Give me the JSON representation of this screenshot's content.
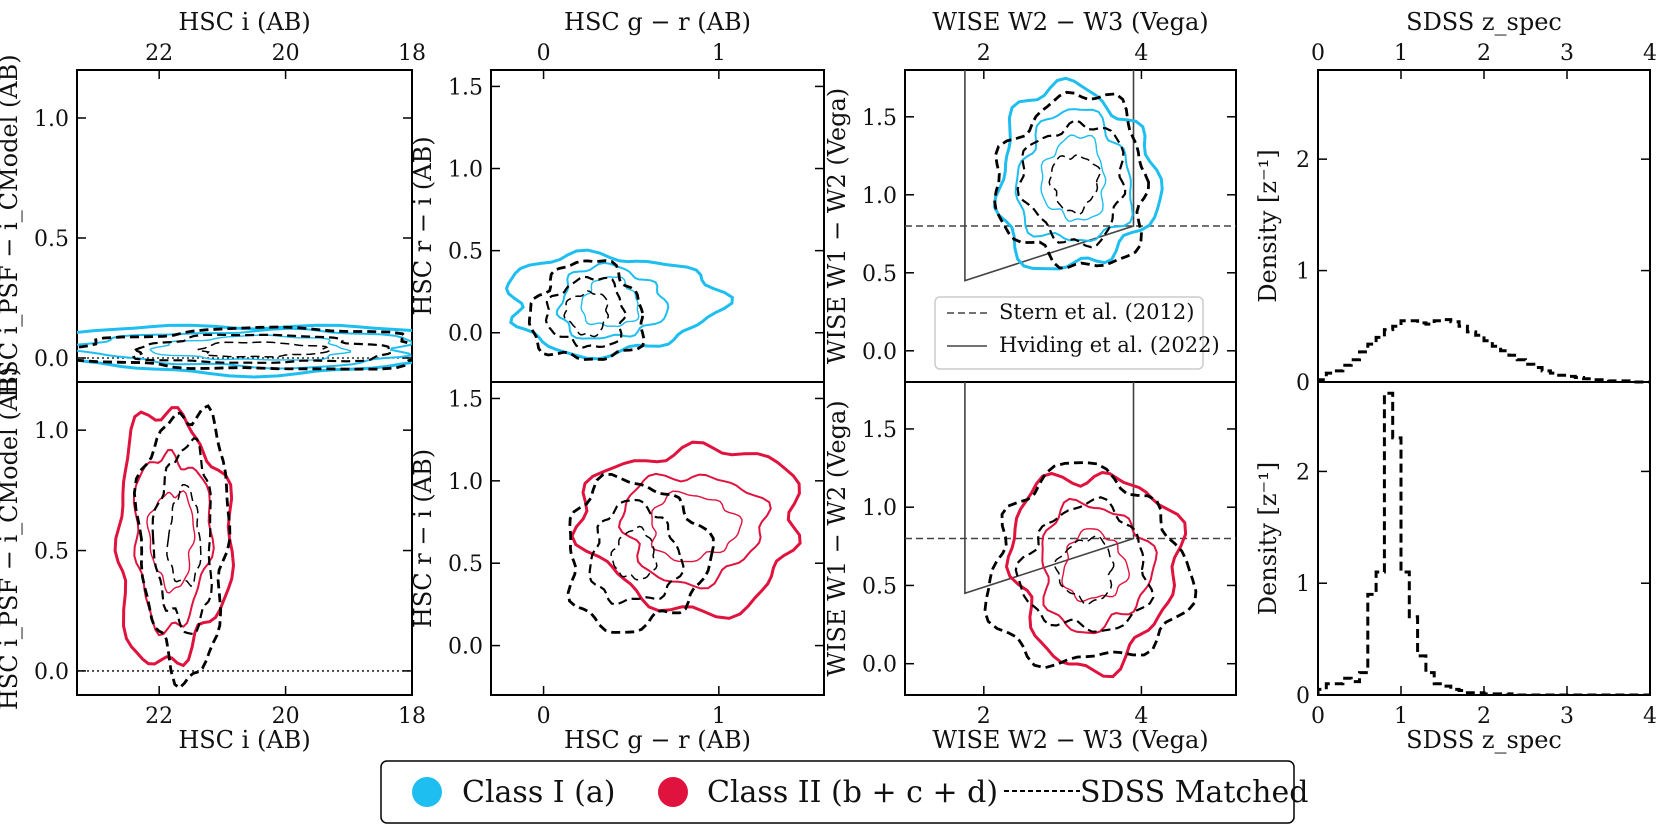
{
  "figure": {
    "colors": {
      "class1": "#1ebef0",
      "class2": "#e0123e",
      "sdss": "#000000",
      "line": "#444444"
    },
    "bottom_legend": {
      "class1": "Class I (a)",
      "class2": "Class II (b + c + d)",
      "sdss": "SDSS Matched"
    }
  },
  "chart_data": [
    {
      "id": "p1",
      "type": "contour",
      "title_top": "HSC i (AB)",
      "xlabel": "HSC i (AB)",
      "ylabel": "HSC i_PSF − i_CModel (AB)",
      "xlim": [
        23.3,
        18
      ],
      "ylim": [
        -0.1,
        1.2
      ],
      "xticks": [
        22,
        20,
        18
      ],
      "yticks": [
        0.0,
        0.5,
        1.0
      ],
      "reference_line": {
        "y": 0.0,
        "style": "dotted"
      },
      "series": [
        {
          "name": "Class I (a)",
          "row": "top",
          "center": [
            20.5,
            0.04
          ],
          "levels": [
            [
              3.4,
              0.1
            ],
            [
              2.6,
              0.075
            ],
            [
              1.5,
              0.05
            ]
          ]
        },
        {
          "name": "SDSS Matched (Class I)",
          "row": "top",
          "center": [
            20.4,
            0.035
          ],
          "levels": [
            [
              2.9,
              0.085
            ],
            [
              2.0,
              0.058
            ],
            [
              1.0,
              0.03
            ]
          ]
        },
        {
          "name": "Class II (b+c+d)",
          "row": "bottom",
          "center": [
            21.8,
            0.55
          ],
          "levels": [
            [
              0.9,
              0.52
            ],
            [
              0.6,
              0.36
            ],
            [
              0.35,
              0.2
            ]
          ]
        },
        {
          "name": "SDSS Matched (Class II)",
          "row": "bottom",
          "center": [
            21.6,
            0.55
          ],
          "levels": [
            [
              0.7,
              0.55
            ],
            [
              0.45,
              0.38
            ],
            [
              0.25,
              0.2
            ]
          ]
        }
      ]
    },
    {
      "id": "p2",
      "type": "contour",
      "title_top": "HSC g − r (AB)",
      "xlabel": "HSC g − r (AB)",
      "ylabel": "HSC r − i (AB)",
      "xlim": [
        -0.3,
        1.6
      ],
      "ylim": [
        -0.3,
        1.6
      ],
      "xticks": [
        0,
        1
      ],
      "yticks": [
        0.0,
        0.5,
        1.0,
        1.5
      ],
      "series": [
        {
          "name": "Class I (a)",
          "row": "top",
          "center": [
            0.38,
            0.18
          ],
          "levels": [
            [
              0.6,
              0.3
            ],
            [
              0.3,
              0.22
            ],
            [
              0.16,
              0.15
            ]
          ]
        },
        {
          "name": "SDSS Matched (Class I)",
          "row": "top",
          "center": [
            0.25,
            0.12
          ],
          "levels": [
            [
              0.32,
              0.3
            ],
            [
              0.22,
              0.21
            ],
            [
              0.12,
              0.13
            ]
          ]
        },
        {
          "name": "Class II (b+c+d)",
          "row": "bottom",
          "center": [
            0.85,
            0.72
          ],
          "levels": [
            [
              0.62,
              0.5
            ],
            [
              0.4,
              0.33
            ],
            [
              0.25,
              0.2
            ]
          ]
        },
        {
          "name": "SDSS Matched (Class II)",
          "row": "bottom",
          "center": [
            0.52,
            0.55
          ],
          "levels": [
            [
              0.4,
              0.45
            ],
            [
              0.25,
              0.3
            ],
            [
              0.12,
              0.15
            ]
          ]
        }
      ]
    },
    {
      "id": "p3",
      "type": "contour",
      "title_top": "WISE W2 − W3 (Vega)",
      "xlabel": "WISE W2 − W3 (Vega)",
      "ylabel": "WISE W1 − W2 (Vega)",
      "xlim": [
        1.0,
        5.2
      ],
      "ylim": [
        -0.2,
        1.8
      ],
      "xticks": [
        2,
        4
      ],
      "yticks": [
        0.0,
        0.5,
        1.0,
        1.5
      ],
      "legend": [
        {
          "label": "Stern et al. (2012)",
          "style": "dashed"
        },
        {
          "label": "Hviding et al. (2022)",
          "style": "solid"
        }
      ],
      "stern_line": {
        "y": 0.8
      },
      "hviding_wedge": [
        [
          1.76,
          1.8
        ],
        [
          1.76,
          0.45
        ],
        [
          3.9,
          0.8
        ],
        [
          3.9,
          1.8
        ]
      ],
      "series": [
        {
          "name": "Class I (a)",
          "row": "top",
          "center": [
            3.15,
            1.1
          ],
          "levels": [
            [
              1.0,
              0.58
            ],
            [
              0.72,
              0.42
            ],
            [
              0.4,
              0.27
            ]
          ]
        },
        {
          "name": "SDSS Matched (Class I)",
          "row": "top",
          "center": [
            3.15,
            1.08
          ],
          "levels": [
            [
              0.95,
              0.55
            ],
            [
              0.65,
              0.38
            ],
            [
              0.3,
              0.18
            ]
          ]
        },
        {
          "name": "Class II (b+c+d)",
          "row": "bottom",
          "center": [
            3.4,
            0.62
          ],
          "levels": [
            [
              1.05,
              0.62
            ],
            [
              0.7,
              0.4
            ],
            [
              0.4,
              0.22
            ]
          ]
        },
        {
          "name": "SDSS Matched (Class II)",
          "row": "bottom",
          "center": [
            3.3,
            0.6
          ],
          "levels": [
            [
              1.25,
              0.62
            ],
            [
              0.8,
              0.4
            ],
            [
              0.35,
              0.2
            ]
          ]
        }
      ]
    },
    {
      "id": "p4",
      "type": "step-histogram",
      "title_top": "SDSS z_spec",
      "xlabel": "SDSS z_spec",
      "ylabel": "Density [z⁻¹]",
      "xlim": [
        0,
        4
      ],
      "ylim": [
        0,
        2.8
      ],
      "xticks": [
        0,
        1,
        2,
        3,
        4
      ],
      "yticks": [
        0,
        1,
        2
      ],
      "bin_width": 0.1,
      "series": [
        {
          "name": "SDSS Matched (Class I)",
          "row": "top",
          "values": [
            0.02,
            0.08,
            0.1,
            0.15,
            0.2,
            0.27,
            0.34,
            0.4,
            0.47,
            0.5,
            0.55,
            0.55,
            0.53,
            0.52,
            0.55,
            0.56,
            0.54,
            0.5,
            0.45,
            0.42,
            0.37,
            0.32,
            0.28,
            0.24,
            0.2,
            0.16,
            0.13,
            0.1,
            0.08,
            0.06,
            0.05,
            0.04,
            0.03,
            0.02,
            0.02,
            0.01,
            0.01,
            0.01,
            0.0,
            0.0
          ]
        },
        {
          "name": "SDSS Matched (Class II)",
          "row": "bottom",
          "values": [
            0.05,
            0.1,
            0.1,
            0.15,
            0.12,
            0.2,
            0.9,
            1.1,
            2.7,
            2.3,
            1.1,
            0.7,
            0.35,
            0.2,
            0.1,
            0.08,
            0.05,
            0.04,
            0.02,
            0.02,
            0.01,
            0.01,
            0.0,
            0.01,
            0.0,
            0.0,
            0.0,
            0.0,
            0.0,
            0.0,
            0.0,
            0.0,
            0.0,
            0.0,
            0.0,
            0.0,
            0.0,
            0.0,
            0.0,
            0.0
          ]
        }
      ]
    }
  ]
}
